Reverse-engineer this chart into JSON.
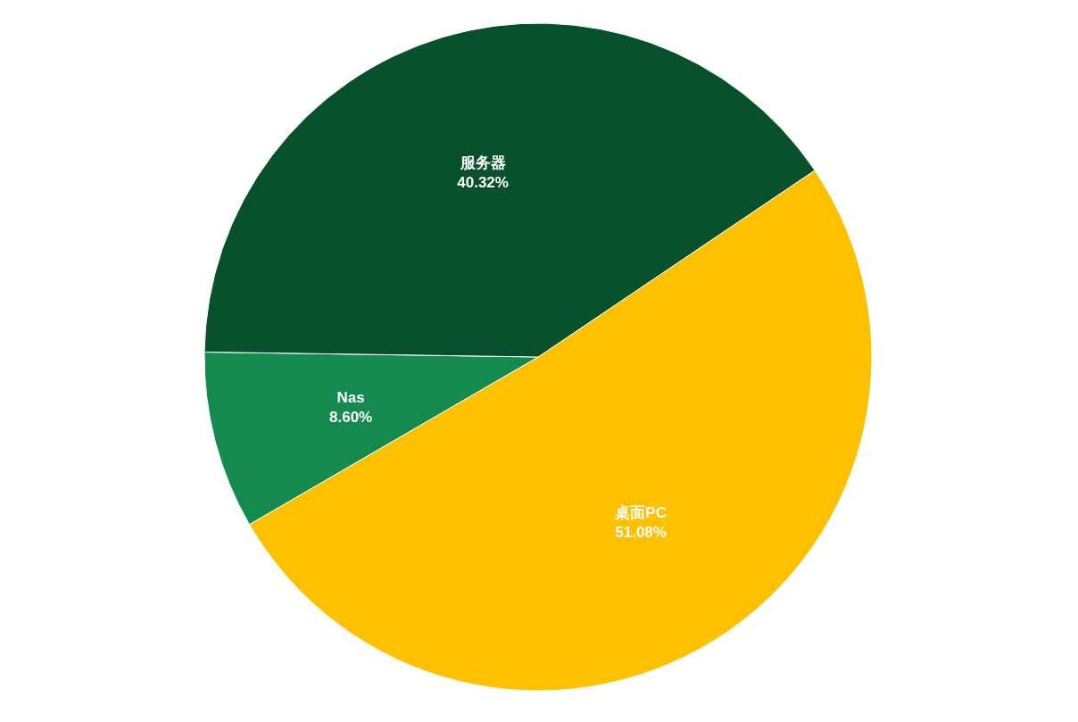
{
  "chart_data": {
    "type": "pie",
    "categories": [
      "桌面PC",
      "Nas",
      "服务器"
    ],
    "values": [
      51.08,
      8.6,
      40.32
    ],
    "colors": [
      "#ffc000",
      "#148a4e",
      "#06502c"
    ],
    "value_labels": [
      "51.08%",
      "8.60%",
      "40.32%"
    ],
    "legend": false
  }
}
